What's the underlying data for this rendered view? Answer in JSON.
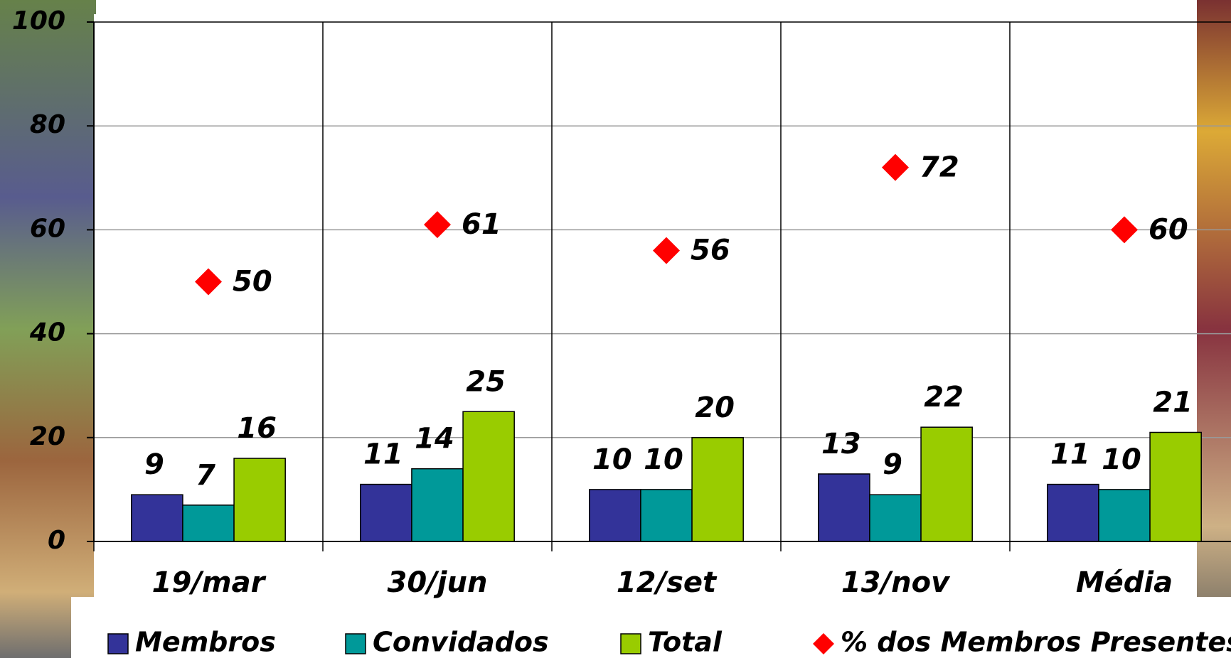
{
  "chart_data": {
    "type": "bar",
    "categories": [
      "19/mar",
      "30/jun",
      "12/set",
      "13/nov",
      "Média"
    ],
    "series": [
      {
        "name": "Membros",
        "color": "#333399",
        "values": [
          9,
          11,
          10,
          13,
          11
        ]
      },
      {
        "name": "Convidados",
        "color": "#009999",
        "values": [
          7,
          14,
          10,
          9,
          10
        ]
      },
      {
        "name": "Total",
        "color": "#99cc00",
        "values": [
          16,
          25,
          20,
          22,
          21
        ]
      },
      {
        "name": "% dos Membros Presentes",
        "color": "#ff0000",
        "type": "marker",
        "values": [
          50,
          61,
          56,
          72,
          60
        ]
      }
    ],
    "ylim": [
      0,
      100
    ],
    "yticks": [
      0,
      20,
      40,
      60,
      80,
      100
    ],
    "grid": true
  }
}
